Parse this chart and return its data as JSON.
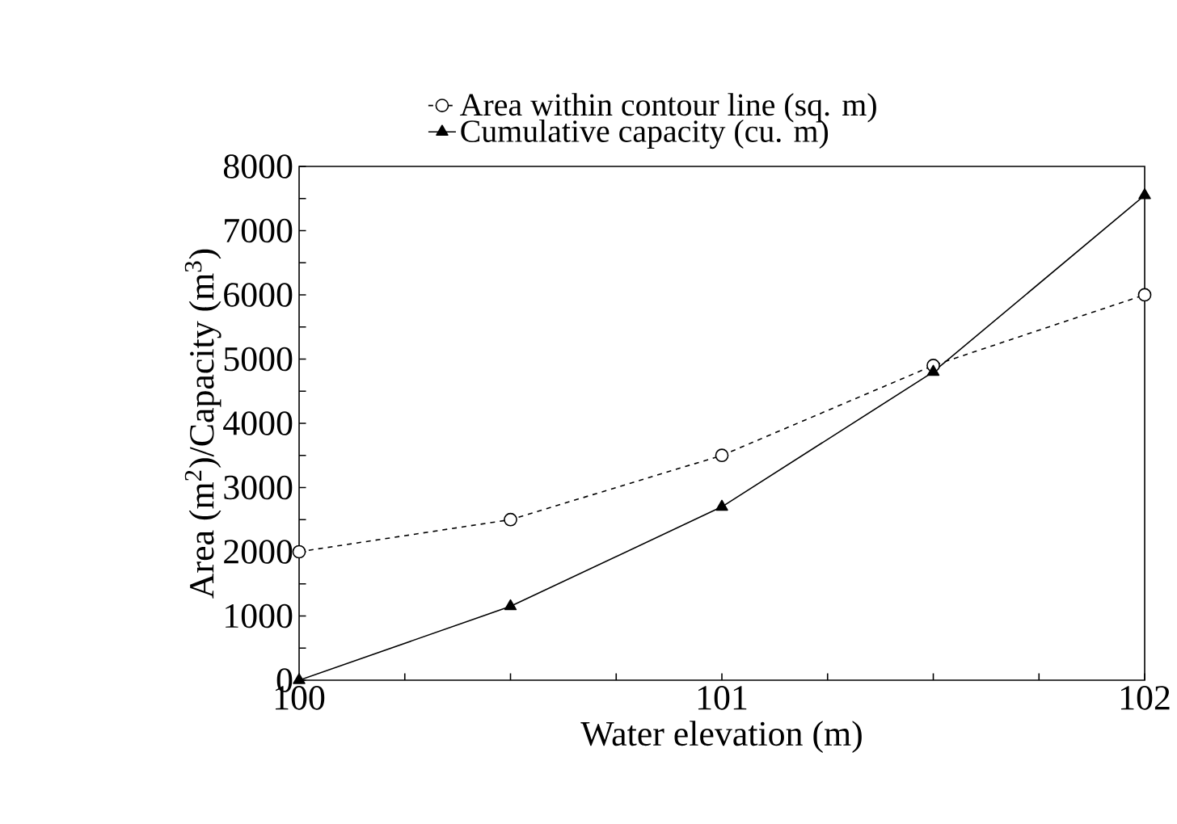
{
  "chart_data": {
    "type": "line",
    "xlabel": "Water elevation (m)",
    "ylabel": "Area (m$^{2}$)/Capacity (m$^{3}$)",
    "x": [
      100,
      100.5,
      101,
      101.5,
      102
    ],
    "series": [
      {
        "name": "Area within contour line (sq. m)",
        "color": "#000000",
        "marker": "circle",
        "line_style": "dashed",
        "values": [
          2000,
          2500,
          3500,
          4900,
          6000
        ]
      },
      {
        "name": "Cumulative capacity (cu. m)",
        "color": "#000000",
        "marker": "triangle",
        "line_style": "solid",
        "values": [
          0,
          1150,
          2700,
          4800,
          7550
        ]
      }
    ],
    "xlim": [
      100,
      102
    ],
    "xticks": [
      100,
      {
        "value": 100.25,
        "label": null
      },
      {
        "value": 100.5,
        "label": null
      },
      {
        "value": 100.75,
        "label": null
      },
      101,
      {
        "value": 101.25,
        "label": null
      },
      {
        "value": 101.5,
        "label": null
      },
      {
        "value": 101.75,
        "label": null
      },
      102
    ],
    "ylim": [
      0,
      8000
    ],
    "yticks": [
      0,
      {
        "value": 500,
        "label": null
      },
      1000,
      {
        "value": 1500,
        "label": null
      },
      2000,
      {
        "value": 2500,
        "label": null
      },
      3000,
      {
        "value": 3500,
        "label": null
      },
      4000,
      {
        "value": 4500,
        "label": null
      },
      5000,
      {
        "value": 5500,
        "label": null
      },
      6000,
      {
        "value": 6500,
        "label": null
      },
      7000,
      {
        "value": 7500,
        "label": null
      },
      8000
    ],
    "grid": false,
    "legend": "top"
  }
}
